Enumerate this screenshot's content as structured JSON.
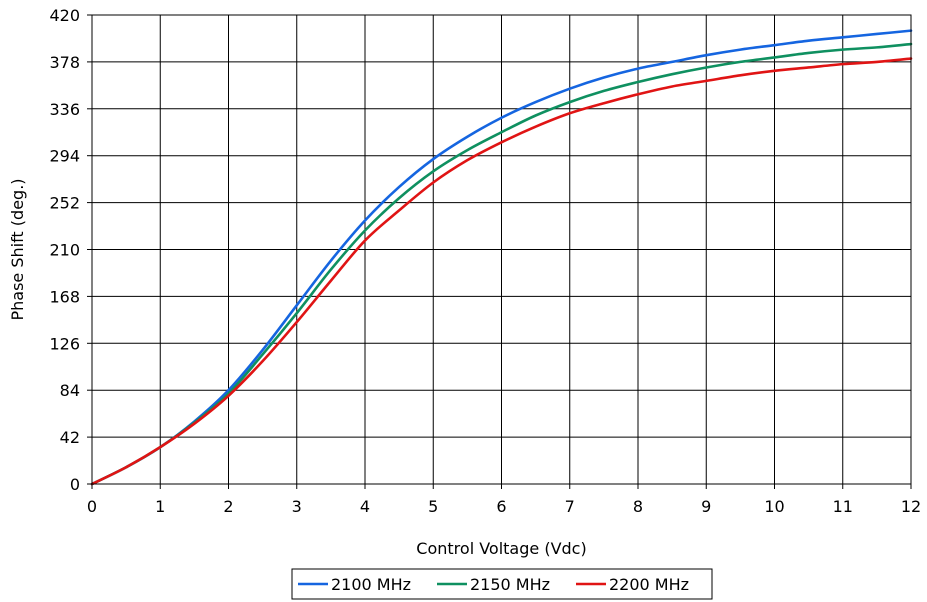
{
  "chart_data": {
    "type": "line",
    "xlabel": "Control Voltage (Vdc)",
    "ylabel": "Phase Shift (deg.)",
    "xlim": [
      0,
      12
    ],
    "ylim": [
      0,
      420
    ],
    "x_ticks": [
      0,
      1,
      2,
      3,
      4,
      5,
      6,
      7,
      8,
      9,
      10,
      11,
      12
    ],
    "y_ticks": [
      0,
      42,
      84,
      126,
      168,
      210,
      252,
      294,
      336,
      378,
      420
    ],
    "grid": true,
    "legend_position": "bottom",
    "x": [
      0,
      0.5,
      1,
      1.5,
      2,
      2.5,
      3,
      3.5,
      4,
      4.5,
      5,
      5.5,
      6,
      6.5,
      7,
      7.5,
      8,
      8.5,
      9,
      9.5,
      10,
      10.5,
      11,
      11.5,
      12
    ],
    "series": [
      {
        "name": "2100 MHz",
        "color": "#1565e0",
        "values": [
          0,
          15,
          33,
          56,
          84,
          120,
          160,
          200,
          236,
          266,
          291,
          311,
          328,
          342,
          354,
          364,
          372,
          378,
          384,
          389,
          393,
          397,
          400,
          403,
          406
        ]
      },
      {
        "name": "2150 MHz",
        "color": "#0f9060",
        "values": [
          0,
          15,
          33,
          55,
          81,
          116,
          153,
          192,
          227,
          256,
          280,
          299,
          315,
          330,
          342,
          352,
          360,
          367,
          373,
          378,
          382,
          386,
          389,
          391,
          394
        ]
      },
      {
        "name": "2200 MHz",
        "color": "#e01414",
        "values": [
          0,
          15,
          33,
          54,
          79,
          110,
          145,
          182,
          218,
          245,
          270,
          290,
          306,
          320,
          332,
          341,
          349,
          356,
          361,
          366,
          370,
          373,
          376,
          378,
          381
        ]
      }
    ]
  }
}
